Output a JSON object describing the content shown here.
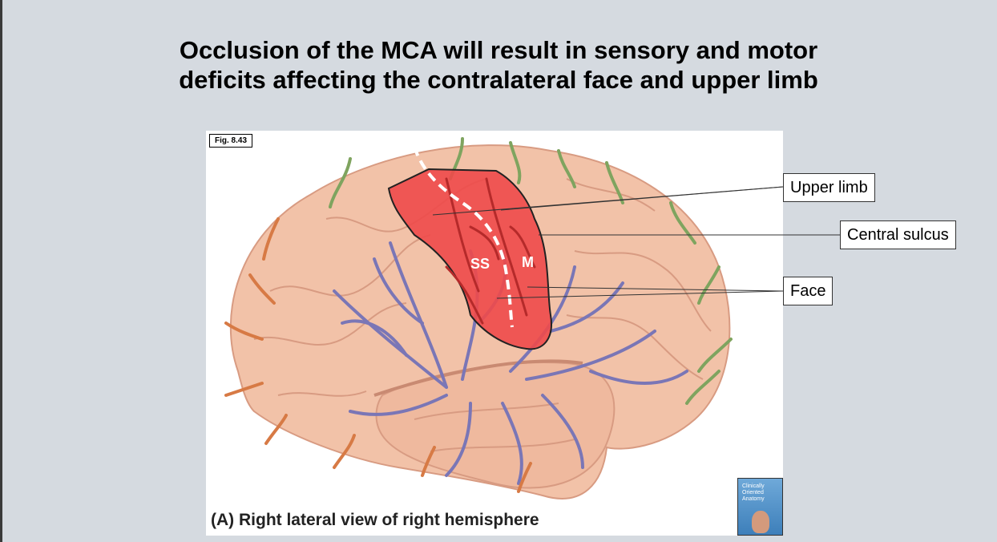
{
  "slide": {
    "title_line1": "Occlusion of the MCA will result in sensory and motor",
    "title_line2": "deficits affecting the contralateral face and upper limb"
  },
  "figure": {
    "label": "Fig. 8.43",
    "caption": "(A) Right lateral view of right hemisphere",
    "region_labels": {
      "sensory": "SS",
      "motor": "M"
    },
    "book": {
      "title_line1": "Clinically",
      "title_line2": "Oriented",
      "title_line3": "Anatomy"
    }
  },
  "callouts": {
    "upper_limb": "Upper limb",
    "central_sulcus": "Central sulcus",
    "face": "Face"
  },
  "colors": {
    "background": "#d5dae0",
    "brain": "#f2c2a8",
    "infarct_region": "#ee4a4a",
    "mca_vessels": "#7a76b6",
    "aca_vessels": "#7fa45f",
    "pca_vessels": "#d77a45"
  }
}
